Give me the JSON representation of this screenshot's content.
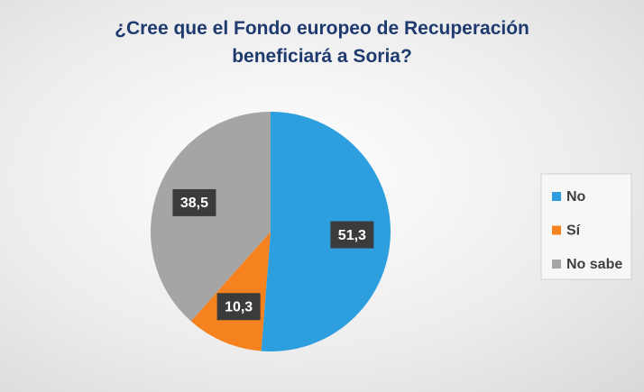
{
  "chart_data": {
    "type": "pie",
    "title": "¿Cree que el Fondo europeo de Recuperación beneficiará a Soria?",
    "categories": [
      "No",
      "Sí",
      "No sabe"
    ],
    "values": [
      51.3,
      10.3,
      38.5
    ],
    "value_labels": [
      "51,3",
      "10,3",
      "38,5"
    ],
    "colors": [
      "#2e9fde",
      "#f5821f",
      "#a5a5a5"
    ],
    "legend": "right"
  }
}
